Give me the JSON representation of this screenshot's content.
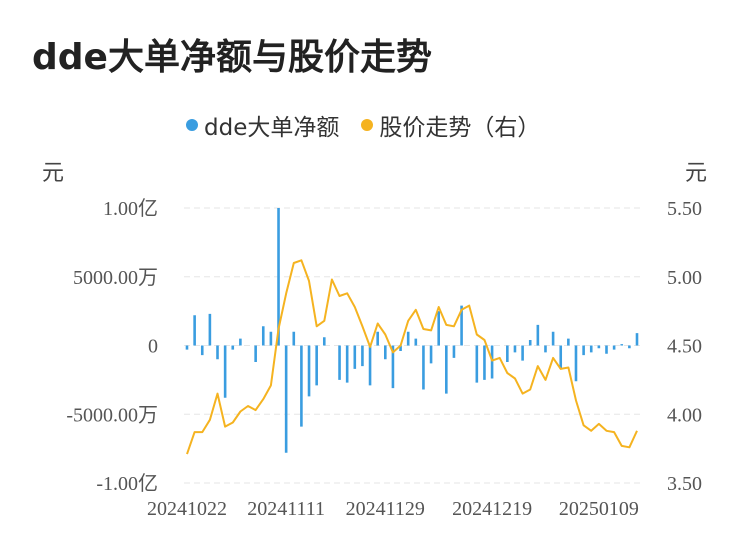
{
  "title": "dde大单净额与股价走势",
  "chart_data": {
    "type": "bar+line",
    "legend": [
      {
        "name": "dde大单净额",
        "color": "#3a9de0"
      },
      {
        "name": "股价走势（右）",
        "color": "#f5b320"
      }
    ],
    "left_axis": {
      "unit": "元",
      "range": [
        -100000000,
        100000000
      ],
      "ticks": [
        {
          "value": 100000000,
          "label": "1.00亿"
        },
        {
          "value": 50000000,
          "label": "5000.00万"
        },
        {
          "value": 0,
          "label": "0"
        },
        {
          "value": -50000000,
          "label": "-5000.00万"
        },
        {
          "value": -100000000,
          "label": "-1.00亿"
        }
      ]
    },
    "right_axis": {
      "unit": "元",
      "range": [
        3.5,
        5.5
      ],
      "ticks": [
        {
          "value": 5.5,
          "label": "5.50"
        },
        {
          "value": 5.0,
          "label": "5.00"
        },
        {
          "value": 4.5,
          "label": "4.50"
        },
        {
          "value": 4.0,
          "label": "4.00"
        },
        {
          "value": 3.5,
          "label": "3.50"
        }
      ]
    },
    "x_tick_labels": [
      "20241022",
      "20241111",
      "20241129",
      "20241219",
      "20250109"
    ],
    "x_tick_index": [
      0,
      13,
      26,
      40,
      54
    ],
    "series": [
      {
        "name": "dde大单净额",
        "kind": "bar",
        "unit": "yuan",
        "values": [
          -3000000,
          22000000,
          -7000000,
          23000000,
          -10000000,
          -38000000,
          -3000000,
          5000000,
          0,
          -12000000,
          14000000,
          10000000,
          100000000,
          -78000000,
          10000000,
          -59000000,
          -37000000,
          -29000000,
          6000000,
          0,
          -25000000,
          -27000000,
          -17000000,
          -15000000,
          -29000000,
          10000000,
          -10000000,
          -31000000,
          -4000000,
          10000000,
          5000000,
          -32000000,
          -13000000,
          25000000,
          -35000000,
          -9000000,
          29000000,
          0,
          -27000000,
          -25000000,
          -24000000,
          0,
          -12000000,
          -5000000,
          -11000000,
          4000000,
          15000000,
          -5000000,
          10000000,
          -17000000,
          5000000,
          -26000000,
          -7000000,
          -5000000,
          -2000000,
          -6000000,
          -3000000,
          1000000,
          -2000000,
          9000000
        ]
      },
      {
        "name": "股价走势（右）",
        "kind": "line",
        "unit": "yuan",
        "values": [
          3.71,
          3.87,
          3.87,
          3.96,
          4.15,
          3.91,
          3.94,
          4.02,
          4.06,
          4.03,
          4.11,
          4.21,
          4.62,
          4.88,
          5.1,
          5.12,
          4.97,
          4.64,
          4.68,
          4.98,
          4.86,
          4.88,
          4.78,
          4.64,
          4.49,
          4.66,
          4.58,
          4.45,
          4.5,
          4.68,
          4.76,
          4.62,
          4.61,
          4.78,
          4.65,
          4.64,
          4.76,
          4.79,
          4.58,
          4.54,
          4.39,
          4.41,
          4.3,
          4.26,
          4.15,
          4.18,
          4.35,
          4.25,
          4.41,
          4.33,
          4.34,
          4.1,
          3.92,
          3.88,
          3.93,
          3.88,
          3.87,
          3.77,
          3.76,
          3.88
        ]
      }
    ],
    "grid": true
  }
}
